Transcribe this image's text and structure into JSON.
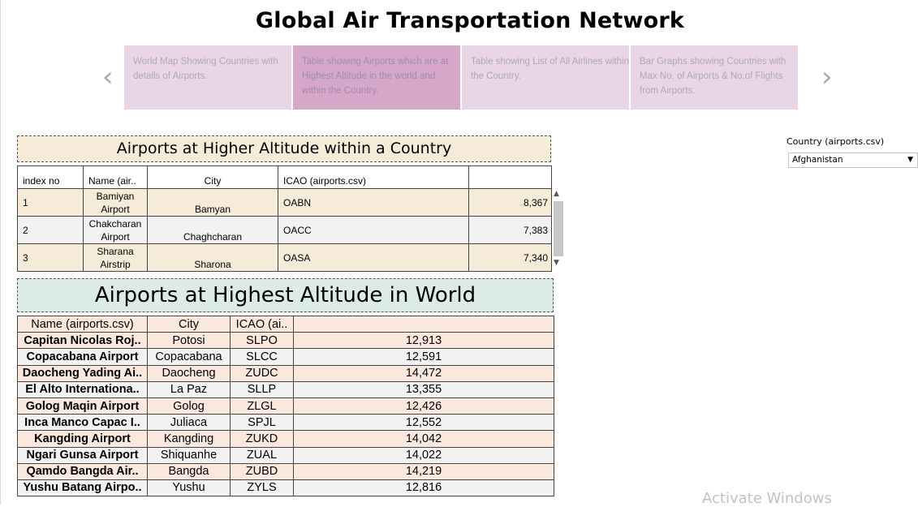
{
  "title": "Global Air Transportation Network",
  "nav": {
    "prev": "‹",
    "next": "›"
  },
  "story_points": [
    {
      "label": "World Map Showing Countries with details of Airports."
    },
    {
      "label": "Table showing Airports which are at Highest Altitude  in the world and within the Country."
    },
    {
      "label": "Table showing List of All Airlines within the Country."
    },
    {
      "label": "Bar Graphs showing Countries with Max No. of Airports & No.of Flights from Airports."
    }
  ],
  "filter": {
    "label": "Country (airports.csv)",
    "value": "Afghanistan"
  },
  "country_table": {
    "title": "Airports at Higher Altitude within a Country",
    "headers": [
      "index no",
      "Name (air..",
      "City",
      "ICAO (airports.csv)",
      ""
    ],
    "rows": [
      {
        "index": "1",
        "name": "Bamiyan Airport",
        "city": "Bamyan",
        "icao": "OABN",
        "altitude": "8,367"
      },
      {
        "index": "2",
        "name": "Chakcharan Airport",
        "city": "Chaghcharan",
        "icao": "OACC",
        "altitude": "7,383"
      },
      {
        "index": "3",
        "name": "Sharana Airstrip",
        "city": "Sharona",
        "icao": "OASA",
        "altitude": "7,340"
      }
    ]
  },
  "world_table": {
    "title": "Airports at Highest Altitude in World",
    "headers": [
      "Name (airports.csv)",
      "City",
      "ICAO (ai..",
      ""
    ],
    "rows": [
      {
        "name": "Capitan Nicolas Roj..",
        "city": "Potosi",
        "icao": "SLPO",
        "altitude": "12,913"
      },
      {
        "name": "Copacabana Airport",
        "city": "Copacabana",
        "icao": "SLCC",
        "altitude": "12,591"
      },
      {
        "name": "Daocheng Yading Ai..",
        "city": "Daocheng",
        "icao": "ZUDC",
        "altitude": "14,472"
      },
      {
        "name": "El Alto Internationa..",
        "city": "La Paz",
        "icao": "SLLP",
        "altitude": "13,355"
      },
      {
        "name": "Golog Maqin Airport",
        "city": "Golog",
        "icao": "ZLGL",
        "altitude": "12,426"
      },
      {
        "name": "Inca Manco Capac I..",
        "city": "Juliaca",
        "icao": "SPJL",
        "altitude": "12,552"
      },
      {
        "name": "Kangding Airport",
        "city": "Kangding",
        "icao": "ZUKD",
        "altitude": "14,042"
      },
      {
        "name": "Ngari Gunsa Airport",
        "city": "Shiquanhe",
        "icao": "ZUAL",
        "altitude": "14,022"
      },
      {
        "name": "Qamdo Bangda Air..",
        "city": "Bangda",
        "icao": "ZUBD",
        "altitude": "14,219"
      },
      {
        "name": "Yushu Batang Airpo..",
        "city": "Yushu",
        "icao": "ZYLS",
        "altitude": "12,816"
      }
    ]
  },
  "watermark": "Activate Windows"
}
